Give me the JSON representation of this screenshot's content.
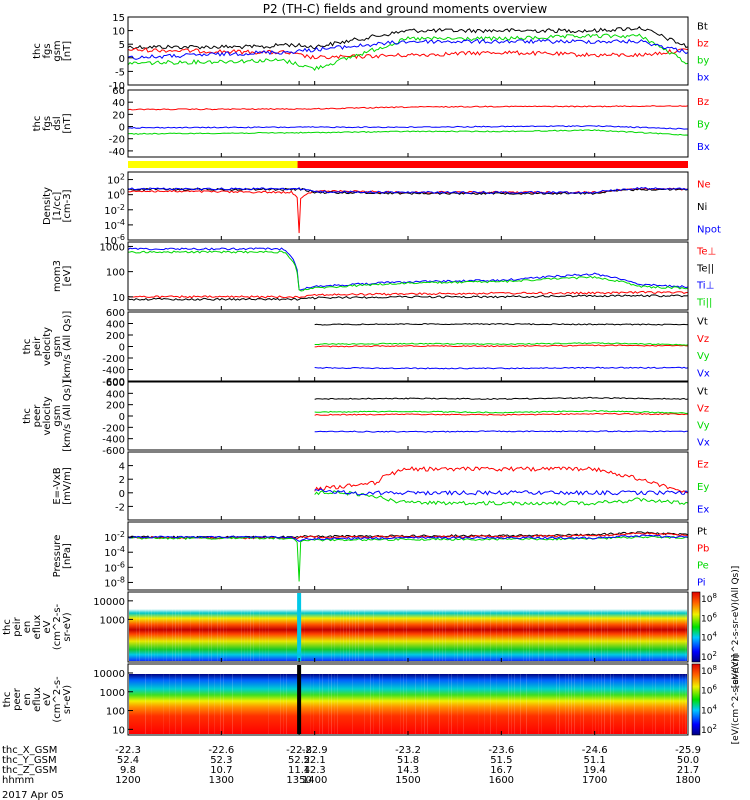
{
  "title": "P2 (TH-C) fields and ground moments overview",
  "date_label": "2017 Apr 05",
  "colors": {
    "black": "#000000",
    "red": "#ff0000",
    "green": "#00d800",
    "blue": "#0000ff",
    "yellow": "#ffff00"
  },
  "x_axis": {
    "rows": [
      {
        "label": "thc_X_GSM",
        "values": [
          "-22.3",
          "-22.6",
          "-22.8",
          "-22.9",
          "-23.2",
          "-23.6",
          "-24.6",
          "-25.9"
        ]
      },
      {
        "label": "thc_Y_GSM",
        "values": [
          "52.4",
          "52.3",
          "52.2",
          "52.1",
          "51.8",
          "51.5",
          "51.1",
          "50.0"
        ]
      },
      {
        "label": "thc_Z_GSM",
        "values": [
          "9.8",
          "10.7",
          "11.4",
          "12.3",
          "14.3",
          "16.7",
          "19.4",
          "21.7"
        ]
      },
      {
        "label": "hhmm",
        "values": [
          "1200",
          "1300",
          "1350",
          "1400",
          "1500",
          "1600",
          "1700",
          "1800"
        ]
      }
    ],
    "tick_times": [
      1200,
      1300,
      1350,
      1400,
      1500,
      1600,
      1700,
      1800
    ],
    "time_range": [
      "1200",
      "1800"
    ]
  },
  "chart_data": [
    {
      "type": "line",
      "id": "fgs_gsm",
      "ylabel": [
        "thc",
        "fgs",
        "gsm",
        "[nT]"
      ],
      "ylim": [
        -10,
        15
      ],
      "yticks": [
        -10,
        -5,
        0,
        5,
        10,
        15
      ],
      "x": [
        "1200",
        "1330",
        "1340",
        "1400",
        "1500",
        "1600",
        "1700",
        "1730",
        "1800"
      ],
      "series": [
        {
          "name": "Bt",
          "color": "#000000",
          "values": [
            4,
            4,
            5,
            4,
            10,
            10,
            10,
            11,
            4
          ]
        },
        {
          "name": "bz",
          "color": "#ff0000",
          "values": [
            3,
            2,
            2,
            0,
            1,
            2,
            1,
            1,
            3
          ]
        },
        {
          "name": "by",
          "color": "#00d800",
          "values": [
            -2,
            -1,
            -1,
            -4,
            7,
            7,
            8,
            8,
            -2
          ]
        },
        {
          "name": "bx",
          "color": "#0000ff",
          "values": [
            0,
            2,
            2,
            3,
            6,
            6,
            6,
            6,
            2
          ]
        }
      ]
    },
    {
      "type": "line",
      "id": "fgs_dsl",
      "ylabel": [
        "thc",
        "fgs",
        "dsl",
        "[nT]"
      ],
      "ylim": [
        -50,
        60
      ],
      "yticks": [
        -40,
        -20,
        0,
        20,
        40,
        60
      ],
      "x": [
        "1200",
        "1400",
        "1500",
        "1600",
        "1700",
        "1800"
      ],
      "series": [
        {
          "name": "Bz",
          "color": "#ff0000",
          "values": [
            28,
            29,
            32,
            33,
            33,
            34
          ]
        },
        {
          "name": "By",
          "color": "#00d800",
          "values": [
            -12,
            -10,
            -8,
            -8,
            -6,
            -14
          ]
        },
        {
          "name": "Bx",
          "color": "#0000ff",
          "values": [
            -2,
            -1,
            -1,
            0,
            1,
            -4
          ]
        }
      ]
    },
    {
      "type": "bar",
      "id": "mode_bar",
      "segments": [
        {
          "from": "1200",
          "to": "1349",
          "color": "#ffff00"
        },
        {
          "from": "1349",
          "to": "1800",
          "color": "#ff0000"
        }
      ]
    },
    {
      "type": "line",
      "id": "density",
      "scale": "log",
      "ylabel": [
        "Density",
        "[1/cc]",
        "[cm-3]"
      ],
      "ylim": [
        1e-06,
        1000
      ],
      "yticks": [
        "10^2",
        "10^0",
        "10^-2",
        "10^-4",
        "10^-6"
      ],
      "x": [
        "1200",
        "1345",
        "1350",
        "1352",
        "1400",
        "1500",
        "1600",
        "1700",
        "1730",
        "1800"
      ],
      "series": [
        {
          "name": "Ne",
          "color": "#ff0000",
          "values": [
            3,
            2,
            1e-05,
            0.5,
            3,
            2,
            2,
            2,
            6,
            5
          ]
        },
        {
          "name": "Ni",
          "color": "#000000",
          "values": [
            5,
            5,
            5,
            5,
            2,
            1.5,
            1.5,
            1.5,
            5,
            5
          ]
        },
        {
          "name": "Npot",
          "color": "#0000ff",
          "values": [
            6,
            6,
            6,
            6,
            2.5,
            2,
            2,
            2,
            7,
            6
          ]
        }
      ]
    },
    {
      "type": "line",
      "id": "temperature",
      "scale": "log",
      "ylabel": [
        "mom3",
        "[eV]"
      ],
      "ylim": [
        3,
        1500
      ],
      "yticks": [
        "1000",
        "100",
        "10"
      ],
      "x": [
        "1200",
        "1340",
        "1350",
        "1400",
        "1500",
        "1600",
        "1700",
        "1730",
        "1800"
      ],
      "series": [
        {
          "name": "Te⊥",
          "color": "#ff0000",
          "values": [
            10,
            10,
            10,
            12,
            13,
            14,
            14,
            15,
            15
          ]
        },
        {
          "name": "Te||",
          "color": "#000000",
          "values": [
            8,
            8,
            8,
            9,
            10,
            10,
            11,
            11,
            11
          ]
        },
        {
          "name": "Ti⊥",
          "color": "#0000ff",
          "values": [
            800,
            800,
            20,
            25,
            40,
            45,
            80,
            30,
            25
          ]
        },
        {
          "name": "Ti||",
          "color": "#00d800",
          "values": [
            600,
            600,
            18,
            22,
            35,
            40,
            60,
            25,
            22
          ]
        }
      ]
    },
    {
      "type": "line",
      "id": "peir_velocity",
      "ylabel": [
        "thc",
        "peir",
        "velocity",
        "gsm",
        "[km/s (All Qs)]"
      ],
      "ylim": [
        -600,
        600
      ],
      "yticks": [
        -600,
        -400,
        -200,
        0,
        200,
        400,
        600
      ],
      "x": [
        "1400",
        "1500",
        "1600",
        "1700",
        "1800"
      ],
      "series": [
        {
          "name": "Vt",
          "color": "#000000",
          "values": [
            380,
            390,
            390,
            385,
            380
          ]
        },
        {
          "name": "Vz",
          "color": "#ff0000",
          "values": [
            0,
            10,
            5,
            20,
            10
          ]
        },
        {
          "name": "Vy",
          "color": "#00d800",
          "values": [
            40,
            50,
            40,
            60,
            30
          ]
        },
        {
          "name": "Vx",
          "color": "#0000ff",
          "values": [
            -370,
            -380,
            -380,
            -370,
            -370
          ]
        }
      ]
    },
    {
      "type": "line",
      "id": "peer_velocity",
      "ylabel": [
        "thc",
        "peer",
        "velocity",
        "gsm",
        "[km/s (All Qs)]"
      ],
      "ylim": [
        -600,
        600
      ],
      "yticks": [
        -600,
        -400,
        -200,
        0,
        200,
        400,
        600
      ],
      "x": [
        "1400",
        "1500",
        "1600",
        "1700",
        "1800"
      ],
      "series": [
        {
          "name": "Vt",
          "color": "#000000",
          "values": [
            300,
            310,
            300,
            320,
            300
          ]
        },
        {
          "name": "Vz",
          "color": "#ff0000",
          "values": [
            20,
            30,
            20,
            40,
            30
          ]
        },
        {
          "name": "Vy",
          "color": "#00d800",
          "values": [
            70,
            80,
            60,
            90,
            50
          ]
        },
        {
          "name": "Vx",
          "color": "#0000ff",
          "values": [
            -270,
            -280,
            -270,
            -270,
            -270
          ]
        }
      ]
    },
    {
      "type": "line",
      "id": "efield",
      "ylabel": [
        "E=-VxB",
        "[mV/m]"
      ],
      "ylim": [
        -4,
        6
      ],
      "yticks": [
        -2,
        0,
        2,
        4
      ],
      "x": [
        "1400",
        "1420",
        "1440",
        "1445",
        "1500",
        "1600",
        "1700",
        "1730",
        "1800"
      ],
      "series": [
        {
          "name": "Ez",
          "color": "#ff0000",
          "values": [
            0.5,
            1,
            1.5,
            2.5,
            3.5,
            3.5,
            3.5,
            2,
            0
          ]
        },
        {
          "name": "Ey",
          "color": "#00d800",
          "values": [
            0,
            0,
            -0.5,
            -1,
            -1.5,
            -1.5,
            -1.5,
            -1,
            -1.5
          ]
        },
        {
          "name": "Ex",
          "color": "#0000ff",
          "values": [
            0.5,
            0,
            0,
            0,
            0,
            0,
            0,
            0,
            0
          ]
        }
      ]
    },
    {
      "type": "line",
      "id": "pressure",
      "scale": "log",
      "ylabel": [
        "Pressure",
        "[nPa]"
      ],
      "ylim": [
        1e-09,
        1
      ],
      "yticks": [
        "10^-2",
        "10^-4",
        "10^-6",
        "10^-8"
      ],
      "x": [
        "1200",
        "1345",
        "1350",
        "1352",
        "1400",
        "1500",
        "1600",
        "1700",
        "1730",
        "1800"
      ],
      "series": [
        {
          "name": "Pt",
          "color": "#000000",
          "values": [
            0.01,
            0.01,
            0.01,
            0.012,
            0.012,
            0.015,
            0.015,
            0.02,
            0.04,
            0.02
          ]
        },
        {
          "name": "Pb",
          "color": "#ff0000",
          "values": [
            0.008,
            0.008,
            0.008,
            0.01,
            0.01,
            0.012,
            0.012,
            0.015,
            0.03,
            0.015
          ]
        },
        {
          "name": "Pe",
          "color": "#00d800",
          "values": [
            0.007,
            0.007,
            1e-08,
            0.004,
            0.004,
            0.005,
            0.005,
            0.006,
            0.01,
            0.008
          ]
        },
        {
          "name": "Pi",
          "color": "#0000ff",
          "values": [
            0.01,
            0.01,
            0.003,
            0.005,
            0.006,
            0.008,
            0.008,
            0.008,
            0.015,
            0.01
          ]
        }
      ]
    },
    {
      "type": "heatmap",
      "id": "peir_eflux",
      "scale": "log",
      "ylabel": [
        "thc",
        "peir",
        "en",
        "eflux",
        "eV",
        "(cm^2-s-",
        "sr-eV)"
      ],
      "ylim": [
        5,
        30000
      ],
      "yticks": [
        "10000",
        "1000"
      ],
      "colorbar": {
        "label": "[eV/(cm^2-s-sr-eV)(All Qs)]",
        "ticks": [
          "10^8",
          "10^6",
          "10^4",
          "10^2"
        ]
      }
    },
    {
      "type": "heatmap",
      "id": "peer_eflux",
      "scale": "log",
      "ylabel": [
        "thc",
        "peer",
        "en",
        "eflux",
        "eV",
        "(cm^2-s-",
        "sr-eV)"
      ],
      "ylim": [
        5,
        30000
      ],
      "yticks": [
        "10000",
        "1000",
        "100",
        "10"
      ],
      "colorbar": {
        "label": "[eV/(cm^2-s-sr-eV)]",
        "ticks": [
          "10^8",
          "10^6",
          "10^4",
          "10^2"
        ]
      }
    }
  ]
}
